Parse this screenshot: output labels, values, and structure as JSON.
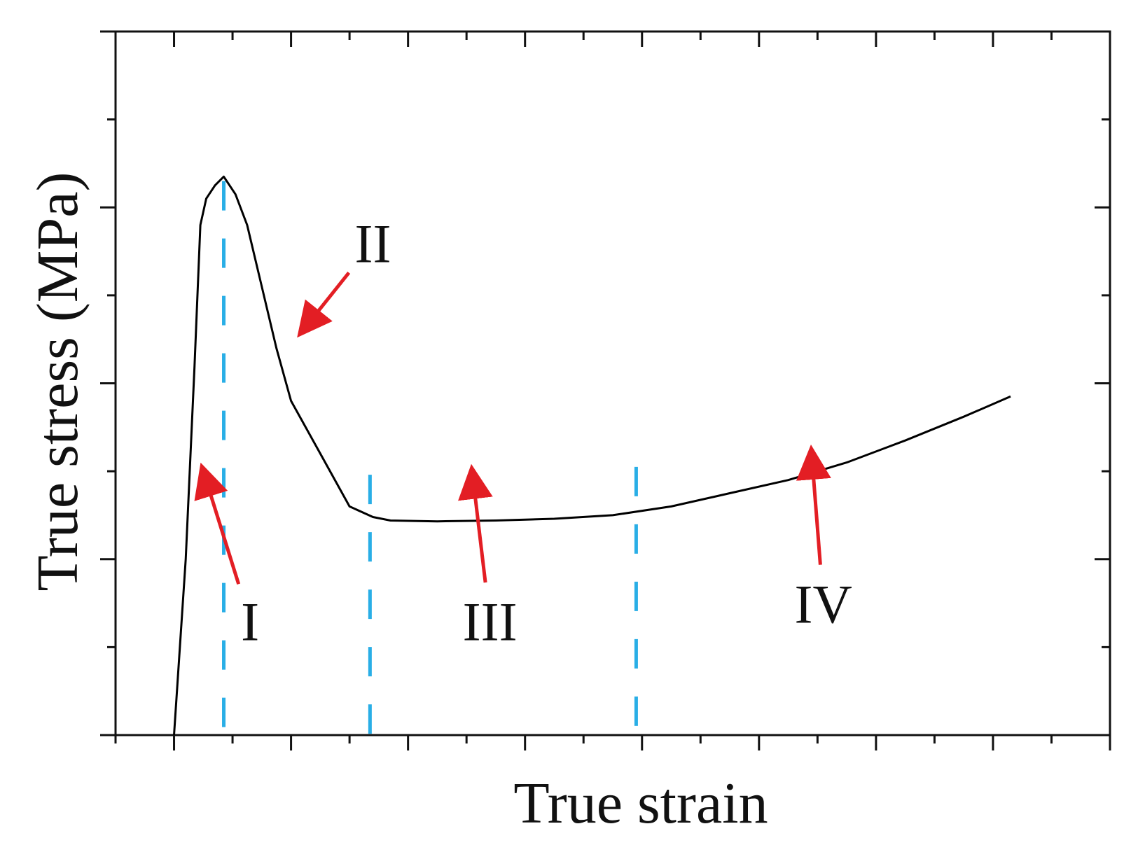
{
  "chart_data": {
    "type": "line",
    "xlabel": "True strain",
    "ylabel": "True stress (MPa)",
    "xlim": [
      0,
      17
    ],
    "ylim": [
      0,
      8
    ],
    "grid": false,
    "legend": "none",
    "tick_labels": "none",
    "series": [
      {
        "color": "#000000",
        "points": [
          [
            1.0,
            0.0
          ],
          [
            1.2,
            2.0
          ],
          [
            1.35,
            4.2
          ],
          [
            1.45,
            5.8
          ],
          [
            1.55,
            6.1
          ],
          [
            1.7,
            6.25
          ],
          [
            1.85,
            6.35
          ],
          [
            2.05,
            6.15
          ],
          [
            2.25,
            5.8
          ],
          [
            2.5,
            5.1
          ],
          [
            2.75,
            4.4
          ],
          [
            3.0,
            3.8
          ],
          [
            3.5,
            3.2
          ],
          [
            4.0,
            2.6
          ],
          [
            4.4,
            2.48
          ],
          [
            4.7,
            2.44
          ],
          [
            5.5,
            2.43
          ],
          [
            6.5,
            2.44
          ],
          [
            7.5,
            2.46
          ],
          [
            8.5,
            2.5
          ],
          [
            9.5,
            2.6
          ],
          [
            10.5,
            2.75
          ],
          [
            11.5,
            2.9
          ],
          [
            12.5,
            3.1
          ],
          [
            13.5,
            3.35
          ],
          [
            14.5,
            3.62
          ],
          [
            15.3,
            3.85
          ]
        ]
      }
    ],
    "region_boundaries": {
      "color": "#29aee6",
      "x": [
        1.85,
        4.35,
        8.9
      ]
    },
    "annotations": [
      {
        "text": "I",
        "arrow_to": [
          1.5,
          3.0
        ],
        "label_at": [
          2.3,
          1.3
        ]
      },
      {
        "text": "II",
        "arrow_to": [
          3.2,
          4.6
        ],
        "label_at": [
          4.4,
          5.6
        ]
      },
      {
        "text": "III",
        "arrow_to": [
          6.1,
          2.98
        ],
        "label_at": [
          6.4,
          1.3
        ]
      },
      {
        "text": "IV",
        "arrow_to": [
          11.9,
          3.2
        ],
        "label_at": [
          12.1,
          1.5
        ]
      }
    ],
    "arrow_color": "#e31e24"
  }
}
